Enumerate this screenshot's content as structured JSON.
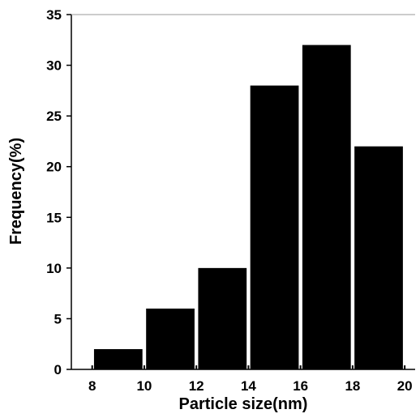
{
  "chart_data": {
    "type": "bar",
    "xlabel": "Particle size(nm)",
    "ylabel": "Frequency(%)",
    "x_ticks": [
      "8",
      "10",
      "12",
      "14",
      "16",
      "18",
      "20"
    ],
    "x_tick_values": [
      8,
      10,
      12,
      14,
      16,
      18,
      20
    ],
    "y_ticks": [
      "0",
      "5",
      "10",
      "15",
      "20",
      "25",
      "30",
      "35"
    ],
    "y_tick_values": [
      0,
      5,
      10,
      15,
      20,
      25,
      30,
      35
    ],
    "xlim": [
      7.2,
      20.4
    ],
    "ylim": [
      0,
      35
    ],
    "bins": [
      {
        "from": 8,
        "to": 10,
        "value": 2
      },
      {
        "from": 10,
        "to": 12,
        "value": 6
      },
      {
        "from": 12,
        "to": 14,
        "value": 10
      },
      {
        "from": 14,
        "to": 16,
        "value": 28
      },
      {
        "from": 16,
        "to": 18,
        "value": 32
      },
      {
        "from": 18,
        "to": 20,
        "value": 22
      }
    ],
    "bar_color": "#000000",
    "grid": false
  }
}
